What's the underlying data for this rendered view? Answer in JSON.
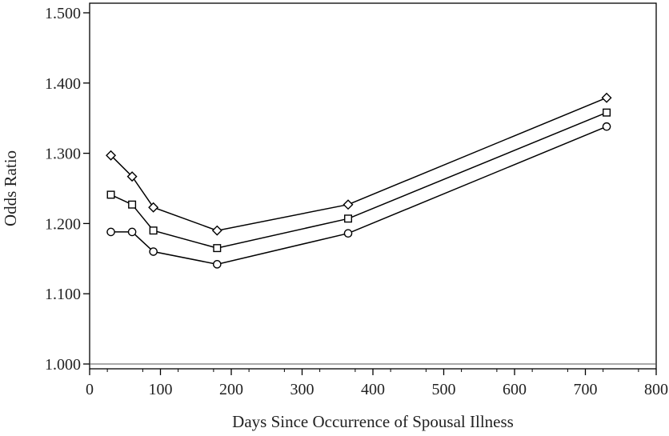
{
  "chart_data": {
    "type": "line",
    "title": "",
    "xlabel": "Days Since Occurrence of Spousal Illness",
    "ylabel": "Odds Ratio",
    "xlim": [
      0,
      800
    ],
    "ylim": [
      1.0,
      1.5
    ],
    "x_ticks": [
      "0",
      "100",
      "200",
      "300",
      "400",
      "500",
      "600",
      "700",
      "800"
    ],
    "y_ticks": [
      "1.000",
      "1.100",
      "1.200",
      "1.300",
      "1.400",
      "1.500"
    ],
    "reference_line_y": 1.0,
    "grid": false,
    "legend": "none",
    "series": [
      {
        "marker": "diamond",
        "x": [
          30,
          60,
          90,
          180,
          365,
          730
        ],
        "y": [
          1.297,
          1.267,
          1.223,
          1.19,
          1.227,
          1.379
        ]
      },
      {
        "marker": "square",
        "x": [
          30,
          60,
          90,
          180,
          365,
          730
        ],
        "y": [
          1.241,
          1.227,
          1.19,
          1.165,
          1.207,
          1.358
        ]
      },
      {
        "marker": "circle",
        "x": [
          30,
          60,
          90,
          180,
          365,
          730
        ],
        "y": [
          1.188,
          1.188,
          1.16,
          1.142,
          1.186,
          1.338
        ]
      }
    ],
    "colors": {
      "line": "#000000",
      "marker_fill": "#ffffff"
    }
  }
}
